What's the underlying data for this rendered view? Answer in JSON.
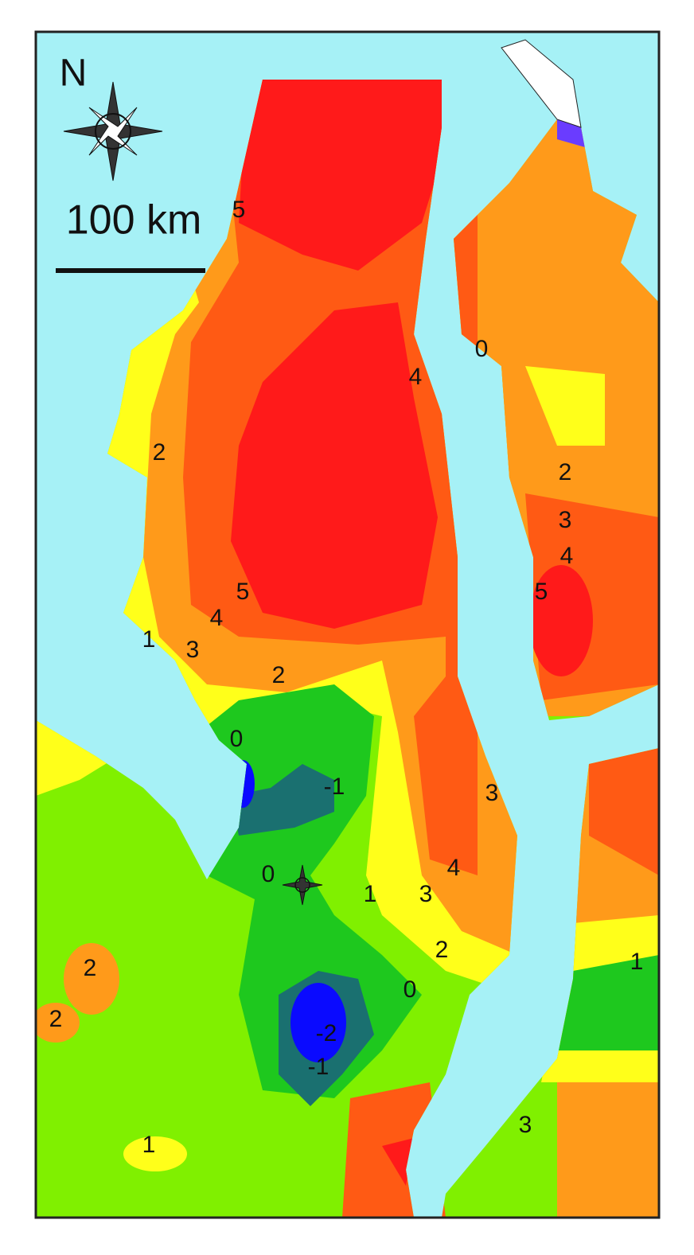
{
  "map": {
    "north_label": "N",
    "scale_label": "100 km",
    "contour_labels": [
      "5",
      "0",
      "4",
      "2",
      "2",
      "3",
      "4",
      "5",
      "4",
      "5",
      "1",
      "3",
      "2",
      "0",
      "-1",
      "3",
      "0",
      "1",
      "4",
      "3",
      "2",
      "0",
      "1",
      "2",
      "2",
      "-2",
      "-1",
      "1",
      "3"
    ]
  }
}
